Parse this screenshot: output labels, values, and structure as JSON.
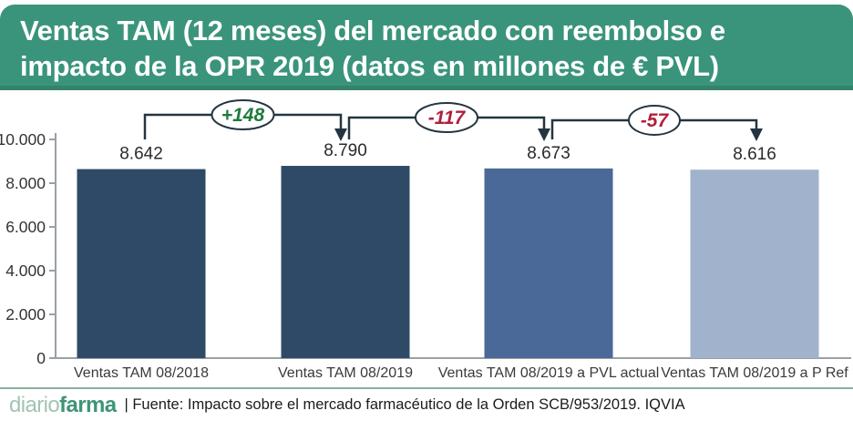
{
  "header": {
    "title_lines": [
      "Ventas TAM (12 meses) del mercado con reembolso e",
      "impacto de la OPR 2019 (datos en millones de € PVL)"
    ],
    "bg_color": "#3A947B",
    "border_color": "#35826B",
    "text_color": "#FFFFFF"
  },
  "chart_data": {
    "type": "bar",
    "title": "Ventas TAM (12 meses) del mercado con reembolso e impacto de la OPR 2019 (datos en millones de € PVL)",
    "categories": [
      "Ventas TAM 08/2018",
      "Ventas TAM 08/2019",
      "Ventas TAM 08/2019 a PVL actual",
      "Ventas TAM 08/2019 a P Ref"
    ],
    "values": [
      8642,
      8790,
      8673,
      8616
    ],
    "value_labels": [
      "8.642",
      "8.790",
      "8.673",
      "8.616"
    ],
    "bar_colors": [
      "#2E4A66",
      "#2E4A66",
      "#4A6998",
      "#A0B2CC"
    ],
    "ylim": [
      0,
      10000
    ],
    "ytick_values": [
      0,
      2000,
      4000,
      6000,
      8000,
      10000
    ],
    "ytick_labels": [
      "0",
      "2.000",
      "4.000",
      "6.000",
      "8.000",
      "10.000"
    ],
    "grid": false,
    "legend": null,
    "xlabel": "",
    "ylabel": "",
    "connectors": [
      {
        "from": 0,
        "to": 1,
        "label": "+148",
        "color": "#1E7B3D"
      },
      {
        "from": 1,
        "to": 2,
        "label": "-117",
        "color": "#B01F3B"
      },
      {
        "from": 2,
        "to": 3,
        "label": "-57",
        "color": "#B01F3B"
      }
    ],
    "axis_color": "#9AA0A6",
    "line_color": "#243540",
    "value_label_color": "#2B2B2B",
    "category_label_color": "#3A3A3A"
  },
  "footer": {
    "logo_prefix": "diario",
    "logo_suffix": "farma",
    "logo_prefix_color": "#A4C3B2",
    "logo_suffix_color": "#3E9478",
    "source_text": "| Fuente: Impacto sobre el mercado farmacéutico de la Orden SCB/953/2019. IQVIA",
    "rule_color": "#8CAF9B"
  }
}
